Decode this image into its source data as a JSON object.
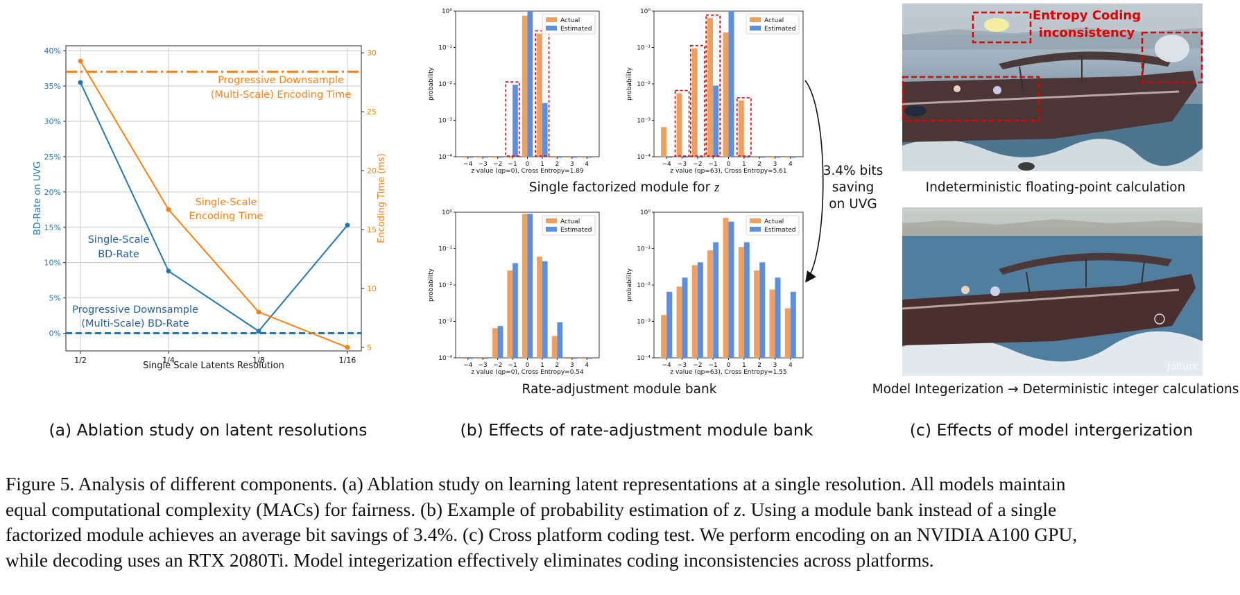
{
  "panel_a": {
    "caption": "(a) Ablation study on latent resolutions",
    "chart_data": {
      "type": "line",
      "title": "",
      "xlabel": "Single Scale Latents Resolution",
      "ylabel": "BD-Rate on UVG",
      "ylabel_right": "Encoding Time (ms)",
      "categories": [
        "1/2",
        "1/4",
        "1/8",
        "1/16"
      ],
      "left_ticks": [
        "0%",
        "5%",
        "10%",
        "15%",
        "20%",
        "25%",
        "30%",
        "35%",
        "40%"
      ],
      "right_ticks": [
        "5",
        "10",
        "15",
        "20",
        "25",
        "30"
      ],
      "ylim": [
        -2.5,
        40.7
      ],
      "ylim_right": [
        4.7,
        30.6
      ],
      "series": [
        {
          "name": "Single-Scale BD-Rate",
          "axis": "left",
          "color": "#1f77b4",
          "values": [
            35.5,
            8.8,
            0.3,
            15.3
          ]
        },
        {
          "name": "Single-Scale Encoding Time",
          "axis": "right",
          "color": "#ff7f0e",
          "values": [
            29.3,
            16.7,
            8.0,
            5.0
          ]
        }
      ],
      "reference_lines": [
        {
          "name": "Progressive Downsample (Multi-Scale) BD-Rate",
          "axis": "left",
          "value": 0,
          "style": "dashed",
          "color": "#1f77b4"
        },
        {
          "name": "Progressive Downsample (Multi-Scale) Encoding Time",
          "axis": "right",
          "value": 28.4,
          "style": "dashdot",
          "color": "#ff7f0e"
        }
      ],
      "annotations": {
        "prog_time": [
          "Progressive Downsample",
          "(Multi-Scale) Encoding Time"
        ],
        "single_time": [
          "Single-Scale",
          "Encoding Time"
        ],
        "single_bd": [
          "Single-Scale",
          "BD-Rate"
        ],
        "prog_bd": [
          "Progressive Downsample",
          "(Multi-Scale) BD-Rate"
        ]
      }
    }
  },
  "panel_b": {
    "caption": "(b) Effects of rate-adjustment module bank",
    "top_label": "Single factorized module for ",
    "top_label_var": "z",
    "bottom_label": "Rate-adjustment module bank",
    "arrow_text": [
      "3.4% bits",
      "saving",
      "on UVG"
    ],
    "chart_data": [
      {
        "type": "bar",
        "ylabel": "probability",
        "xlabel": "z value (qp=0), Cross Entropy=1.89",
        "categories": [
          "−4",
          "−3",
          "−2",
          "−1",
          "0",
          "1",
          "2",
          "3",
          "4"
        ],
        "yscale": "log",
        "ylim": [
          0.0001,
          1
        ],
        "y_ticks": [
          "10⁻⁴",
          "10⁻³",
          "10⁻²",
          "10⁻¹",
          "10⁰"
        ],
        "legend": [
          "Actual",
          "Estimated"
        ],
        "highlight": [
          -1,
          1
        ],
        "series": [
          {
            "name": "Actual",
            "color": "#f0a05e",
            "values": [
              0.0001,
              0.0001,
              0.0001,
              0.0001,
              0.75,
              0.24,
              0.0001,
              0.0001,
              0.0001
            ]
          },
          {
            "name": "Estimated",
            "color": "#5b8fe0",
            "values": [
              0.0001,
              0.0001,
              0.0001,
              0.0095,
              0.96,
              0.003,
              0.0001,
              0.0001,
              0.0001
            ]
          }
        ]
      },
      {
        "type": "bar",
        "ylabel": "probability",
        "xlabel": "z value (qp=63), Cross Entropy=5.61",
        "categories": [
          "−4",
          "−3",
          "−2",
          "−1",
          "0",
          "1",
          "2",
          "3",
          "4"
        ],
        "yscale": "log",
        "ylim": [
          0.0001,
          1
        ],
        "y_ticks": [
          "10⁻⁴",
          "10⁻³",
          "10⁻²",
          "10⁻¹",
          "10⁰"
        ],
        "legend": [
          "Actual",
          "Estimated"
        ],
        "highlight": [
          -3,
          -2,
          -1,
          1
        ],
        "series": [
          {
            "name": "Actual",
            "color": "#f0a05e",
            "values": [
              0.00065,
              0.0055,
              0.095,
              0.65,
              0.26,
              0.0035,
              0.0001,
              0.0001,
              0.0001
            ]
          },
          {
            "name": "Estimated",
            "color": "#5b8fe0",
            "values": [
              0.0001,
              0.0001,
              0.0001,
              0.009,
              0.96,
              0.0001,
              0.0001,
              0.0001,
              0.0001
            ]
          }
        ]
      },
      {
        "type": "bar",
        "ylabel": "probability",
        "xlabel": "z value (qp=0), Cross Entropy=0.54",
        "categories": [
          "−4",
          "−3",
          "−2",
          "−1",
          "0",
          "1",
          "2",
          "3",
          "4"
        ],
        "yscale": "log",
        "ylim": [
          0.0001,
          1
        ],
        "y_ticks": [
          "10⁻⁴",
          "10⁻³",
          "10⁻²",
          "10⁻¹",
          "10⁰"
        ],
        "legend": [
          "Actual",
          "Estimated"
        ],
        "highlight": [],
        "series": [
          {
            "name": "Actual",
            "color": "#f0a05e",
            "values": [
              0.0001,
              0.0001,
              0.00065,
              0.025,
              0.9,
              0.06,
              0.0004,
              0.0001,
              0.0001
            ]
          },
          {
            "name": "Estimated",
            "color": "#5b8fe0",
            "values": [
              0.0001,
              0.0001,
              0.00075,
              0.04,
              0.9,
              0.045,
              0.00095,
              0.0001,
              0.0001
            ]
          }
        ]
      },
      {
        "type": "bar",
        "ylabel": "probability",
        "xlabel": "z value (qp=63), Cross Entropy=1.55",
        "categories": [
          "−4",
          "−3",
          "−2",
          "−1",
          "0",
          "1",
          "2",
          "3",
          "4"
        ],
        "yscale": "log",
        "ylim": [
          0.0001,
          1
        ],
        "y_ticks": [
          "10⁻⁴",
          "10⁻³",
          "10⁻²",
          "10⁻¹",
          "10⁰"
        ],
        "legend": [
          "Actual",
          "Estimated"
        ],
        "highlight": [],
        "series": [
          {
            "name": "Actual",
            "color": "#f0a05e",
            "values": [
              0.0015,
              0.009,
              0.035,
              0.09,
              0.7,
              0.11,
              0.025,
              0.0075,
              0.0023
            ]
          },
          {
            "name": "Estimated",
            "color": "#5b8fe0",
            "values": [
              0.0065,
              0.016,
              0.042,
              0.15,
              0.55,
              0.15,
              0.042,
              0.016,
              0.0065
            ]
          }
        ]
      }
    ]
  },
  "panel_c": {
    "caption": "(c) Effects of model intergerization",
    "top_label": "Indeterministic floating-point calculation",
    "bottom_label": "Model Integerization → Deterministic integer calculations",
    "entropy_label": [
      "Entropy Coding",
      "inconsistency"
    ],
    "watermark": "Jolturk"
  },
  "figure_caption": [
    "Figure 5. Analysis of different components. (a) Ablation study on learning latent representations at a single resolution. All models maintain",
    "equal computational complexity (MACs) for fairness. (b) Example of probability estimation of ",
    "z",
    ". Using a module bank instead of a single",
    "factorized module achieves an average bit savings of 3.4%. (c) Cross platform coding test. We perform encoding on an NVIDIA A100 GPU,",
    "while decoding uses an RTX 2080Ti. Model integerization effectively eliminates coding inconsistencies across platforms."
  ],
  "colors": {
    "blue": "#1f77b4",
    "orange": "#ff7f0e",
    "actual": "#f0a05e",
    "estimated": "#5b8fe0",
    "highlight": "#e00000"
  }
}
